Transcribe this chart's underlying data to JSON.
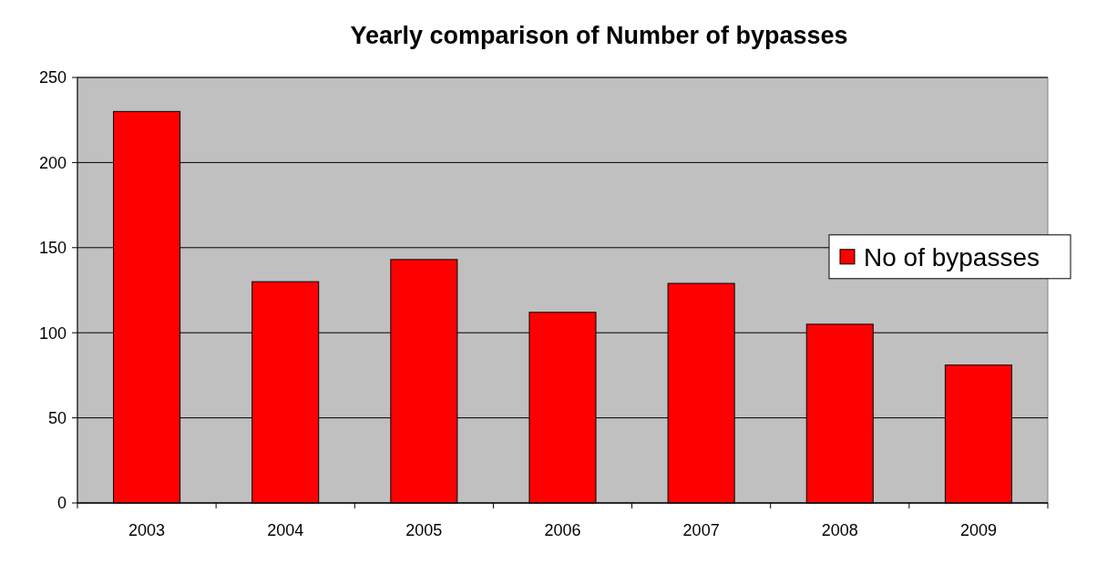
{
  "chart_data": {
    "type": "bar",
    "title": "Yearly comparison of Number of bypasses",
    "categories": [
      "2003",
      "2004",
      "2005",
      "2006",
      "2007",
      "2008",
      "2009"
    ],
    "series": [
      {
        "name": "No of bypasses",
        "color": "#ff0000",
        "values": [
          230,
          130,
          143,
          112,
          129,
          105,
          81
        ]
      }
    ],
    "ylim": [
      0,
      250
    ],
    "yticks": [
      0,
      50,
      100,
      150,
      200,
      250
    ],
    "grid": "y",
    "legend": "right"
  }
}
